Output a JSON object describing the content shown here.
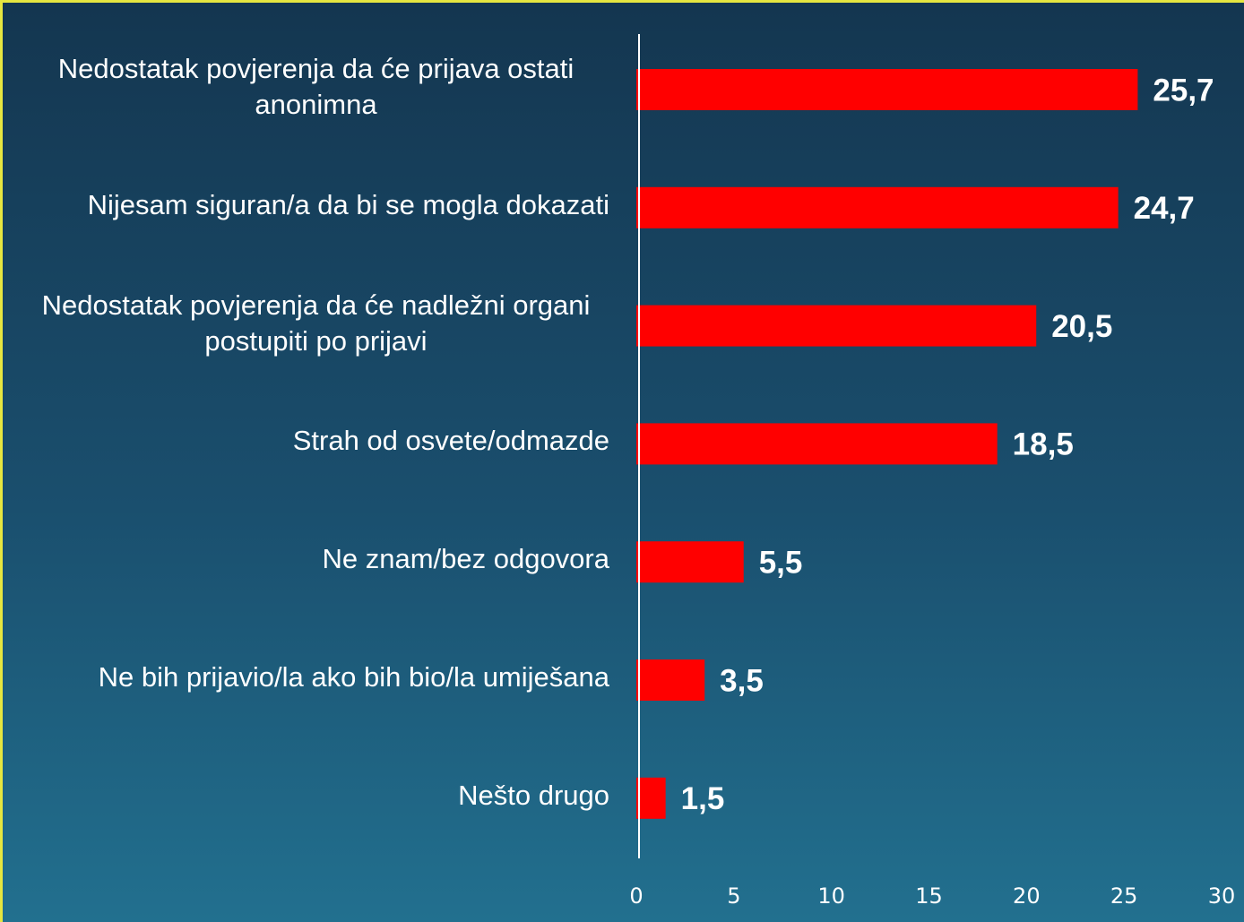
{
  "chart_data": {
    "type": "bar",
    "orientation": "horizontal",
    "categories": [
      "Nedostatak povjerenja da će prijava ostati anonimna",
      "Nijesam siguran/a da bi se mogla dokazati",
      "Nedostatak povjerenja da će nadležni organi postupiti po prijavi",
      "Strah od osvete/odmazde",
      "Ne znam/bez odgovora",
      "Ne bih prijavio/la ako bih bio/la umiješana",
      "Nešto drugo"
    ],
    "values": [
      25.7,
      24.7,
      20.5,
      18.5,
      5.5,
      3.5,
      1.5
    ],
    "value_labels": [
      "25,7",
      "24,7",
      "20,5",
      "18,5",
      "5,5",
      "3,5",
      "1,5"
    ],
    "color": "#ff0000",
    "xlim": [
      0,
      30
    ],
    "xticks": [
      0,
      5,
      10,
      15,
      20,
      25,
      30
    ]
  }
}
